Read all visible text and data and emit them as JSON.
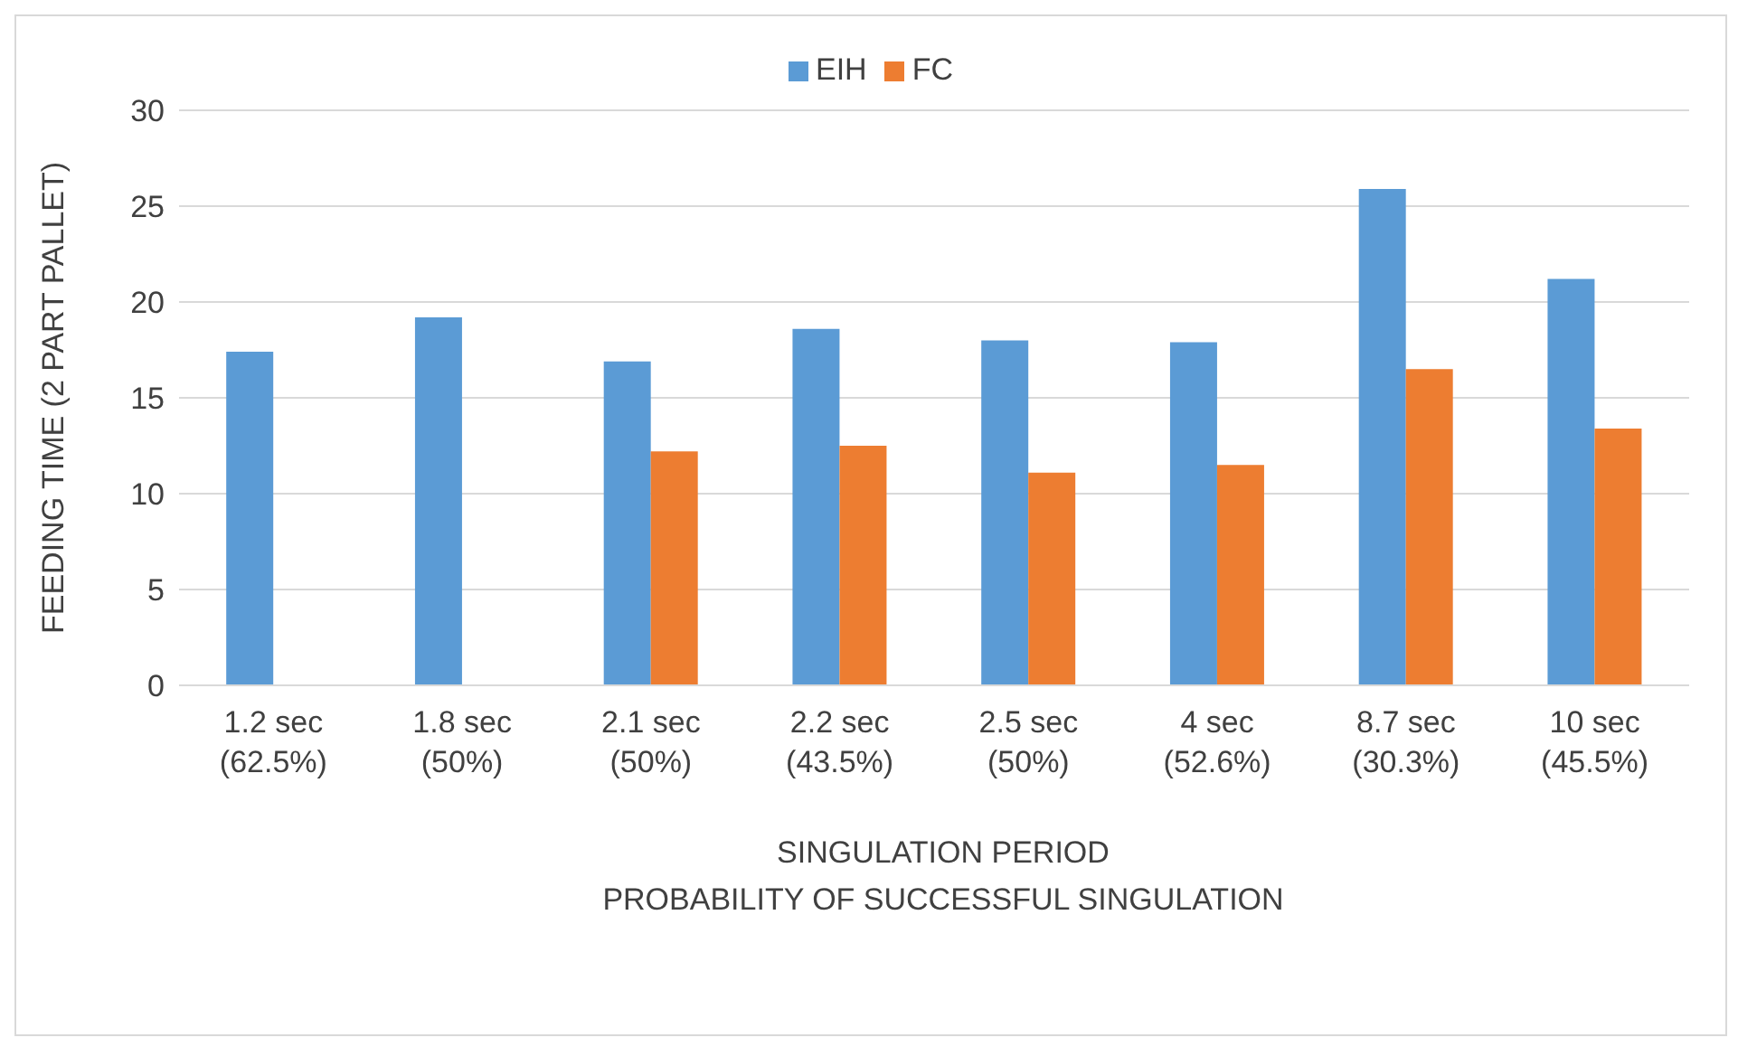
{
  "chart_data": {
    "type": "bar",
    "xlabel": "SINGULATION PERIOD\nPROBABILITY OF SUCCESSFUL SINGULATION",
    "ylabel": "FEEDING TIME (2 PART PALLET)",
    "categories": [
      "1.2 sec\n(62.5%)",
      "1.8 sec\n(50%)",
      "2.1 sec\n(50%)",
      "2.2 sec\n(43.5%)",
      "2.5 sec\n(50%)",
      "4 sec\n(52.6%)",
      "8.7 sec\n(30.3%)",
      "10 sec\n(45.5%)"
    ],
    "series": [
      {
        "name": "EIH",
        "color": "#5b9bd5",
        "values": [
          17.4,
          19.2,
          16.9,
          18.6,
          18.0,
          17.9,
          25.9,
          21.2
        ]
      },
      {
        "name": "FC",
        "color": "#ed7d31",
        "values": [
          null,
          null,
          12.2,
          12.5,
          11.1,
          11.5,
          16.5,
          13.4
        ]
      }
    ],
    "ylim": [
      0,
      30
    ],
    "yticks": [
      0,
      5,
      10,
      15,
      20,
      25,
      30
    ],
    "grid": "y",
    "legend": "top"
  }
}
